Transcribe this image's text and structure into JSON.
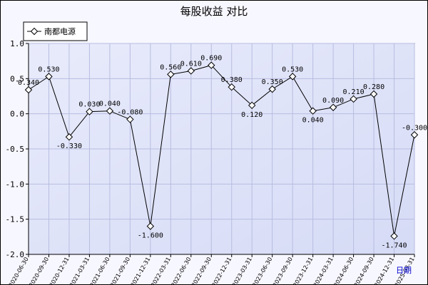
{
  "chart_data": {
    "type": "line",
    "title": "每股收益 对比",
    "xlabel": "日期",
    "ylabel": "",
    "ylim": [
      -2.0,
      1.0
    ],
    "yticks": [
      "1.0",
      "0.5",
      "0.0",
      "-0.5",
      "-1.0",
      "-1.5",
      "-2.0"
    ],
    "grid": true,
    "legend_position": "top-left",
    "categories": [
      "2020-06-30",
      "2020-09-30",
      "2020-12-31",
      "2021-03-31",
      "2021-06-30",
      "2021-09-30",
      "2021-12-31",
      "2022-03-31",
      "2022-06-30",
      "2022-09-30",
      "2022-12-31",
      "2023-03-31",
      "2023-06-30",
      "2023-09-30",
      "2023-12-31",
      "2024-03-31",
      "2024-06-30",
      "2024-09-30",
      "2024-12-31",
      "2025-03-31"
    ],
    "series": [
      {
        "name": "南都电源",
        "values": [
          0.34,
          0.53,
          -0.33,
          0.03,
          0.04,
          -0.08,
          -1.6,
          0.56,
          0.61,
          0.69,
          0.38,
          0.12,
          0.35,
          0.53,
          0.04,
          0.09,
          0.21,
          0.28,
          -1.74,
          -0.3
        ],
        "labels": [
          "0.340",
          "0.530",
          "-0.330",
          "0.030",
          "0.040",
          "-0.080",
          "-1.600",
          "0.560",
          "0.610",
          "0.690",
          "0.380",
          "0.120",
          "0.350",
          "0.530",
          "0.040",
          "0.090",
          "0.210",
          "0.280",
          "-1.740",
          "-0.300"
        ]
      }
    ]
  },
  "colors": {
    "plot_bg": "#d9def8",
    "plot_bg_light": "#e8ebfb",
    "grid": "#b8bde0",
    "line": "#000000",
    "marker_fill": "#ffffff"
  }
}
